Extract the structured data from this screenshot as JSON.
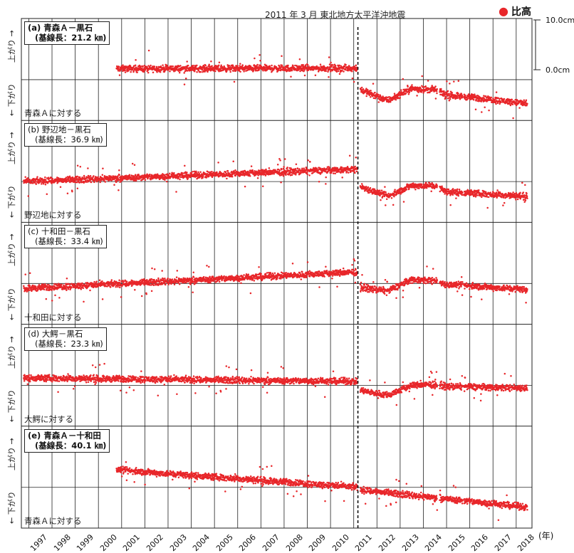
{
  "legend_label": "比高",
  "event_label": "2011 年 3 月  東北地方太平洋沖地震",
  "scale": {
    "top": "10.0cm",
    "bottom": "0.0cm"
  },
  "year_unit": "(年)",
  "side_up": "上がり →",
  "side_down": "← 下がり",
  "colors": {
    "points": "#e8262a",
    "grid": "#222222"
  },
  "chart_data": {
    "type": "scatter",
    "x_label": "(年)",
    "x_ticks": [
      "1997",
      "1998",
      "1999",
      "2000",
      "2001",
      "2002",
      "2003",
      "2004",
      "2005",
      "2006",
      "2007",
      "2008",
      "2009",
      "2010",
      "2011",
      "2012",
      "2013",
      "2014",
      "2015",
      "2016",
      "2017",
      "2018"
    ],
    "y_scale_cm": [
      0,
      10
    ],
    "event_year": 2011.2,
    "panels": [
      {
        "id": "a",
        "title": "(a) 青森Ａ－黒石",
        "baseline": "(基線長：21.2 ㎞)",
        "relative_to": "青森Ａに対する",
        "start_year": 2000.8,
        "trend_cm": [
          [
            2000.8,
            2.2
          ],
          [
            2011.2,
            2.3
          ],
          [
            2011.3,
            -2.0
          ],
          [
            2012.5,
            -4.2
          ],
          [
            2013.5,
            -1.8
          ],
          [
            2014.5,
            -2.0
          ],
          [
            2015.0,
            -3.0
          ],
          [
            2018.5,
            -4.8
          ]
        ]
      },
      {
        "id": "b",
        "title": "(b) 野辺地－黒石",
        "baseline": "(基線長：36.9 ㎞)",
        "relative_to": "野辺地に対する",
        "start_year": 1996.8,
        "trend_cm": [
          [
            1996.8,
            0.0
          ],
          [
            2011.2,
            2.5
          ],
          [
            2011.3,
            -1.0
          ],
          [
            2012.5,
            -3.0
          ],
          [
            2013.5,
            -0.8
          ],
          [
            2014.5,
            -0.8
          ],
          [
            2015.0,
            -2.0
          ],
          [
            2018.5,
            -3.0
          ]
        ]
      },
      {
        "id": "c",
        "title": "(c) 十和田－黒石",
        "baseline": "(基線長：33.4 ㎞)",
        "relative_to": "十和田に対する",
        "start_year": 1996.8,
        "trend_cm": [
          [
            1996.8,
            -1.0
          ],
          [
            2011.2,
            2.3
          ],
          [
            2011.3,
            -0.8
          ],
          [
            2012.5,
            -1.5
          ],
          [
            2013.5,
            0.8
          ],
          [
            2014.5,
            0.6
          ],
          [
            2015.0,
            -0.2
          ],
          [
            2018.5,
            -1.2
          ]
        ]
      },
      {
        "id": "d",
        "title": "(d) 大鰐－黒石",
        "baseline": "(基線長：23.3 ㎞)",
        "relative_to": "大鰐に対する",
        "start_year": 1996.8,
        "trend_cm": [
          [
            1996.8,
            1.5
          ],
          [
            2011.2,
            0.8
          ],
          [
            2011.3,
            -1.0
          ],
          [
            2012.5,
            -2.0
          ],
          [
            2013.5,
            0.0
          ],
          [
            2014.5,
            0.2
          ],
          [
            2015.0,
            -0.2
          ],
          [
            2018.5,
            -0.5
          ]
        ]
      },
      {
        "id": "e",
        "title": "(e) 青森Ａ－十和田",
        "baseline": "(基線長：40.1 ㎞)",
        "relative_to": "青森Ａに対する",
        "start_year": 2000.8,
        "trend_cm": [
          [
            2000.8,
            3.5
          ],
          [
            2011.2,
            0.0
          ],
          [
            2011.3,
            -0.5
          ],
          [
            2018.5,
            -4.0
          ]
        ]
      }
    ]
  }
}
